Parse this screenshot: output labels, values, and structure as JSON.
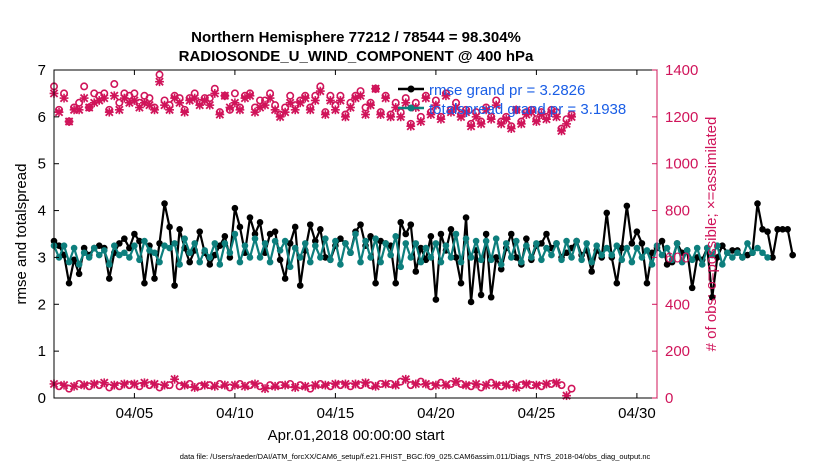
{
  "chart_data": {
    "type": "line",
    "title": "Northern Hemisphere 77212 / 78544 = 98.304%",
    "subtitle": "RADIOSONDE_U_WIND_COMPONENT @ 400 hPa",
    "xlabel": "Apr.01,2018 00:00:00 start",
    "ylabel_left": "rmse and totalspread",
    "ylabel_right": "# of obs: o=possible; ×=assimilated",
    "footer": "data file: /Users/raeder/DAI/ATM_forcXX/CAM6_setup/f.e21.FHIST_BGC.f09_025.CAM6assim.011/Diags_NTrS_2018-04/obs_diag_output.nc",
    "xlim": [
      1,
      31
    ],
    "ylim_left": [
      0,
      7
    ],
    "ylim_right": [
      0,
      1400
    ],
    "x_ticks": [
      5,
      10,
      15,
      20,
      25,
      30
    ],
    "x_tick_labels": [
      "04/05",
      "04/10",
      "04/15",
      "04/20",
      "04/25",
      "04/30"
    ],
    "y_left_ticks": [
      "0",
      "1",
      "2",
      "3",
      "4",
      "5",
      "6",
      "7"
    ],
    "y_right_ticks": [
      "0",
      "200",
      "400",
      "600",
      "800",
      "1000",
      "1200",
      "1400"
    ],
    "legend": [
      "rmse grand pr = 3.2826",
      "totalspread grand pr = 3.1938"
    ],
    "legend_position": "top-right",
    "x_start": 1.0,
    "x_step": 0.25,
    "series": [
      {
        "name": "rmse",
        "color": "#000000",
        "axis": "left",
        "values": [
          3.35,
          3.25,
          3.05,
          2.45,
          2.95,
          2.65,
          3.2,
          3.05,
          3.2,
          3.25,
          3.2,
          2.55,
          3.1,
          3.3,
          3.4,
          3.2,
          3.5,
          3.35,
          2.45,
          3.25,
          2.55,
          3.3,
          4.15,
          3.65,
          2.4,
          3.6,
          3.2,
          2.9,
          3.15,
          3.55,
          3.1,
          2.85,
          3.05,
          3.25,
          3.45,
          3.0,
          4.05,
          3.65,
          3.1,
          3.85,
          3.5,
          3.75,
          3.1,
          3.5,
          3.55,
          2.95,
          2.55,
          3.3,
          3.65,
          2.4,
          3.15,
          3.7,
          3.35,
          3.6,
          3.0,
          2.95,
          3.25,
          3.4,
          3.3,
          3.1,
          3.55,
          3.7,
          3.25,
          3.45,
          2.45,
          3.35,
          3.3,
          3.25,
          2.45,
          3.75,
          3.5,
          3.7,
          2.7,
          3.2,
          2.95,
          3.45,
          2.1,
          3.5,
          3.15,
          3.6,
          3.0,
          2.45,
          3.85,
          2.05,
          3.15,
          2.2,
          3.5,
          2.15,
          3.0,
          2.75,
          3.2,
          3.5,
          3.0,
          2.85,
          3.4,
          2.95,
          3.25,
          3.3,
          3.5,
          3.2,
          3.3,
          3.0,
          3.1,
          3.2,
          3.35,
          3.05,
          3.15,
          2.7,
          3.15,
          3.0,
          3.95,
          3.0,
          2.45,
          3.2,
          4.1,
          3.3,
          3.55,
          3.3,
          2.45,
          3.1,
          3.2,
          3.35,
          2.85,
          2.9,
          3.3,
          3.1,
          3.15,
          2.35,
          3.0,
          2.95,
          3.2,
          2.15,
          3.0,
          3.25,
          3.1,
          3.15,
          3.15,
          3.0,
          3.05,
          3.1,
          4.15,
          3.6,
          3.55,
          3.0,
          3.6,
          3.6,
          3.6,
          3.05
        ]
      },
      {
        "name": "totalspread",
        "color": "#0d7f7d",
        "axis": "left",
        "values": [
          3.25,
          3.0,
          3.25,
          2.9,
          3.2,
          2.85,
          3.1,
          3.0,
          3.2,
          3.05,
          3.15,
          2.85,
          3.25,
          3.05,
          3.1,
          3.0,
          3.25,
          2.95,
          3.35,
          3.15,
          3.1,
          2.9,
          3.25,
          3.2,
          3.3,
          2.85,
          3.4,
          3.1,
          3.3,
          2.9,
          3.15,
          3.0,
          3.3,
          2.85,
          3.3,
          3.1,
          3.5,
          2.9,
          3.25,
          3.0,
          3.4,
          3.0,
          3.3,
          2.9,
          3.35,
          3.15,
          3.35,
          2.8,
          3.2,
          3.0,
          3.3,
          2.9,
          3.25,
          3.0,
          3.4,
          2.95,
          3.35,
          2.85,
          3.3,
          3.1,
          3.5,
          2.9,
          3.35,
          3.0,
          3.4,
          2.9,
          3.3,
          3.05,
          3.45,
          2.8,
          3.3,
          3.0,
          3.3,
          2.9,
          3.2,
          3.0,
          3.3,
          2.9,
          3.25,
          3.0,
          3.5,
          2.9,
          3.4,
          3.0,
          3.35,
          2.95,
          3.35,
          2.95,
          3.4,
          2.85,
          3.3,
          3.0,
          3.35,
          2.9,
          3.25,
          3.0,
          3.3,
          2.95,
          3.2,
          3.05,
          3.3,
          2.95,
          3.35,
          3.0,
          3.35,
          2.95,
          3.3,
          2.9,
          3.25,
          3.05,
          3.2,
          3.05,
          3.25,
          2.95,
          3.2,
          2.9,
          3.2,
          3.0,
          3.15,
          2.85,
          3.25,
          3.05,
          3.2,
          2.95,
          3.3,
          2.9,
          3.15,
          2.95,
          3.2,
          2.85,
          3.2,
          3.05,
          3.25,
          2.85,
          3.1,
          3.0,
          3.1,
          3.0,
          3.3,
          3.1,
          3.2,
          3.1,
          3.0
        ]
      },
      {
        "name": "obs possible",
        "color": "#d0145a",
        "marker": "circle",
        "axis": "right",
        "values": [
          1330,
          1230,
          1300,
          1180,
          1240,
          1260,
          1330,
          1240,
          1300,
          1290,
          1300,
          1230,
          1340,
          1260,
          1300,
          1290,
          1300,
          1260,
          1290,
          1280,
          1240,
          1380,
          1270,
          1250,
          1290,
          1280,
          1230,
          1280,
          1300,
          1260,
          1280,
          1280,
          1320,
          1220,
          1290,
          1230,
          1300,
          1240,
          1290,
          1300,
          1240,
          1270,
          1270,
          1300,
          1250,
          1210,
          1240,
          1290,
          1250,
          1270,
          1290,
          1240,
          1290,
          1330,
          1220,
          1290,
          1250,
          1290,
          1210,
          1260,
          1290,
          1310,
          1240,
          1260,
          1320,
          1220,
          1290,
          1210,
          1260,
          1220,
          1280,
          1170,
          1260,
          1200,
          1290,
          1220,
          1270,
          1200,
          1300,
          1230,
          1260,
          1210,
          1230,
          1170,
          1220,
          1180,
          1240,
          1200,
          1270,
          1180,
          1200,
          1160,
          1230,
          1180,
          1220,
          1230,
          1190,
          1220,
          1200,
          1230,
          1220,
          1150,
          1190,
          1210
        ]
      },
      {
        "name": "obs assimilated",
        "color": "#d0145a",
        "marker": "x",
        "axis": "right",
        "values": [
          1300,
          1220,
          1280,
          1180,
          1230,
          1230,
          1280,
          1240,
          1260,
          1270,
          1280,
          1220,
          1290,
          1230,
          1280,
          1260,
          1270,
          1240,
          1260,
          1250,
          1230,
          1350,
          1250,
          1230,
          1280,
          1260,
          1220,
          1270,
          1280,
          1250,
          1270,
          1250,
          1300,
          1210,
          1290,
          1240,
          1260,
          1230,
          1280,
          1290,
          1220,
          1240,
          1250,
          1280,
          1230,
          1200,
          1220,
          1260,
          1230,
          1260,
          1280,
          1230,
          1270,
          1310,
          1210,
          1270,
          1230,
          1270,
          1200,
          1240,
          1280,
          1290,
          1210,
          1250,
          1320,
          1210,
          1280,
          1200,
          1240,
          1200,
          1260,
          1160,
          1240,
          1180,
          1280,
          1210,
          1250,
          1190,
          1290,
          1220,
          1240,
          1200,
          1220,
          1160,
          1200,
          1170,
          1230,
          1190,
          1250,
          1170,
          1190,
          1150,
          1230,
          1170,
          1210,
          1220,
          1180,
          1210,
          1190,
          1220,
          1200,
          1140,
          1170,
          1200
        ]
      },
      {
        "name": "obs rejected",
        "color": "#d0145a",
        "marker": "mixed",
        "axis": "right",
        "values": [
          60,
          50,
          55,
          40,
          50,
          60,
          55,
          50,
          60,
          55,
          65,
          45,
          55,
          50,
          60,
          55,
          60,
          50,
          65,
          55,
          60,
          45,
          55,
          55,
          80,
          50,
          55,
          60,
          45,
          50,
          55,
          55,
          50,
          60,
          55,
          45,
          55,
          60,
          50,
          55,
          60,
          50,
          40,
          55,
          50,
          55,
          55,
          60,
          45,
          55,
          50,
          40,
          55,
          60,
          55,
          50,
          60,
          55,
          60,
          50,
          60,
          55,
          65,
          55,
          50,
          60,
          60,
          60,
          55,
          70,
          80,
          55,
          60,
          70,
          60,
          50,
          55,
          65,
          55,
          60,
          70,
          60,
          55,
          50,
          60,
          45,
          55,
          65,
          55,
          50,
          55,
          60,
          45,
          55,
          60,
          55,
          55,
          50,
          60,
          60,
          65,
          55,
          10,
          40
        ]
      }
    ]
  }
}
